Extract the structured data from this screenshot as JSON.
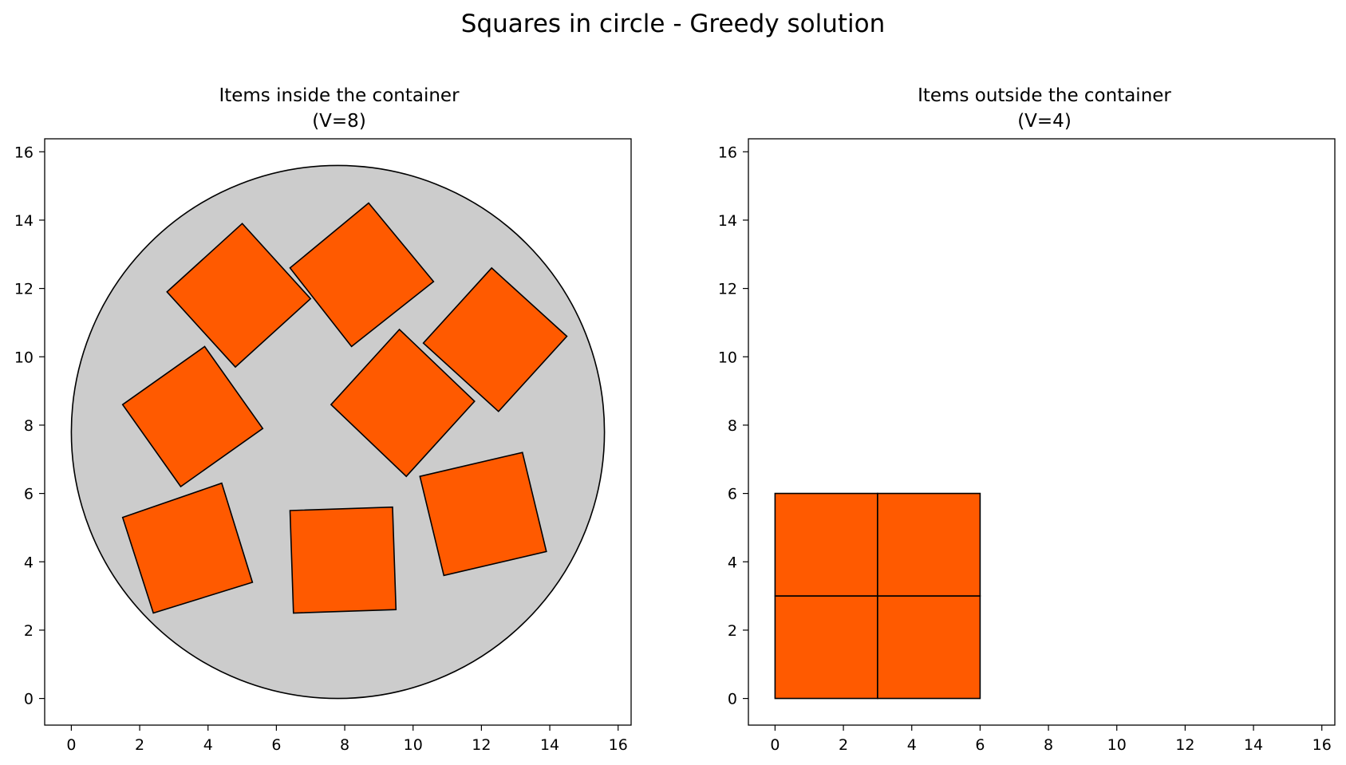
{
  "figure": {
    "title": "Squares in circle - Greedy solution"
  },
  "chart_data": [
    {
      "type": "scatter",
      "title_line1": "Items inside the container",
      "title_line2": "(V=8)",
      "xlabel": "",
      "ylabel": "",
      "xlim": [
        -0.78,
        16.38
      ],
      "ylim": [
        -0.78,
        16.38
      ],
      "xticks": [
        0,
        2,
        4,
        6,
        8,
        10,
        12,
        14,
        16
      ],
      "yticks": [
        0,
        2,
        4,
        6,
        8,
        10,
        12,
        14,
        16
      ],
      "grid": false,
      "container": {
        "shape": "circle",
        "center": [
          7.8,
          7.8
        ],
        "radius": 7.8,
        "fill": "#cccccc"
      },
      "item_color": "#ff5a00",
      "items": [
        {
          "name": "square-1",
          "corners": [
            [
              2.8,
              11.9
            ],
            [
              5.0,
              13.9
            ],
            [
              7.0,
              11.7
            ],
            [
              4.8,
              9.7
            ]
          ]
        },
        {
          "name": "square-2",
          "corners": [
            [
              6.4,
              12.6
            ],
            [
              8.7,
              14.5
            ],
            [
              10.6,
              12.2
            ],
            [
              8.2,
              10.3
            ]
          ]
        },
        {
          "name": "square-3",
          "corners": [
            [
              10.3,
              10.4
            ],
            [
              12.3,
              12.6
            ],
            [
              14.5,
              10.6
            ],
            [
              12.5,
              8.4
            ]
          ]
        },
        {
          "name": "square-4",
          "corners": [
            [
              1.5,
              8.6
            ],
            [
              3.9,
              10.3
            ],
            [
              5.6,
              7.9
            ],
            [
              3.2,
              6.2
            ]
          ]
        },
        {
          "name": "square-5",
          "corners": [
            [
              7.6,
              8.6
            ],
            [
              9.6,
              10.8
            ],
            [
              11.8,
              8.7
            ],
            [
              9.8,
              6.5
            ]
          ]
        },
        {
          "name": "square-6",
          "corners": [
            [
              1.5,
              5.3
            ],
            [
              4.4,
              6.3
            ],
            [
              5.3,
              3.4
            ],
            [
              2.4,
              2.5
            ]
          ]
        },
        {
          "name": "square-7",
          "corners": [
            [
              6.4,
              5.5
            ],
            [
              9.4,
              5.6
            ],
            [
              9.5,
              2.6
            ],
            [
              6.5,
              2.5
            ]
          ]
        },
        {
          "name": "square-8",
          "corners": [
            [
              10.2,
              6.5
            ],
            [
              13.2,
              7.2
            ],
            [
              13.9,
              4.3
            ],
            [
              10.9,
              3.6
            ]
          ]
        }
      ]
    },
    {
      "type": "scatter",
      "title_line1": "Items outside the container",
      "title_line2": "(V=4)",
      "xlabel": "",
      "ylabel": "",
      "xlim": [
        -0.78,
        16.38
      ],
      "ylim": [
        -0.78,
        16.38
      ],
      "xticks": [
        0,
        2,
        4,
        6,
        8,
        10,
        12,
        14,
        16
      ],
      "yticks": [
        0,
        2,
        4,
        6,
        8,
        10,
        12,
        14,
        16
      ],
      "grid": false,
      "item_color": "#ff5a00",
      "items": [
        {
          "name": "square-1",
          "corners": [
            [
              0,
              0
            ],
            [
              0,
              3
            ],
            [
              3,
              3
            ],
            [
              3,
              0
            ]
          ]
        },
        {
          "name": "square-2",
          "corners": [
            [
              3,
              0
            ],
            [
              3,
              3
            ],
            [
              6,
              3
            ],
            [
              6,
              0
            ]
          ]
        },
        {
          "name": "square-3",
          "corners": [
            [
              0,
              3
            ],
            [
              0,
              6
            ],
            [
              3,
              6
            ],
            [
              3,
              3
            ]
          ]
        },
        {
          "name": "square-4",
          "corners": [
            [
              3,
              3
            ],
            [
              3,
              6
            ],
            [
              6,
              6
            ],
            [
              6,
              3
            ]
          ]
        }
      ]
    }
  ]
}
